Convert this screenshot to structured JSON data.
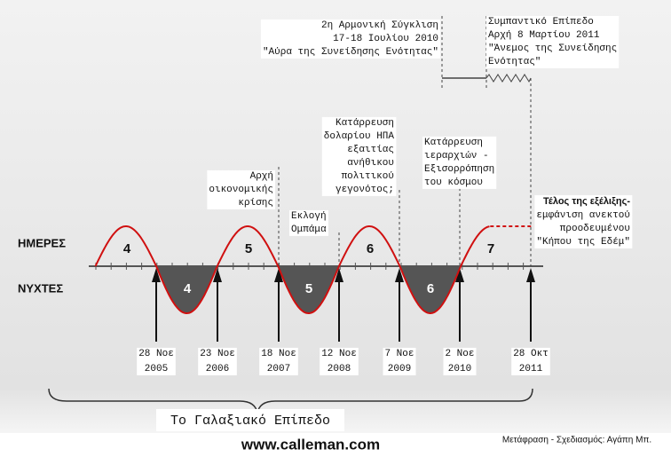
{
  "header_notes": [
    {
      "lines": [
        "2η Αρμονική Σύγκλιση",
        "17-18 Ιουλίου 2010",
        "\"Αύρα της Συνείδησης Ενότητας\""
      ]
    },
    {
      "lines": [
        "Συμπαντικό Επίπεδο",
        "Αρχή 8 Μαρτίου 2011",
        "\"Άνεμος της Συνείδησης",
        "Ενότητας\""
      ]
    }
  ],
  "row_labels": {
    "days": "ΗΜΕΡΕΣ",
    "nights": "ΝΥΧΤΕΣ"
  },
  "day_numbers": [
    4,
    5,
    6,
    7
  ],
  "night_numbers": [
    4,
    5,
    6
  ],
  "annotations": [
    {
      "lines": [
        "Αρχή",
        "οικονομικής",
        "κρίσης"
      ]
    },
    {
      "lines": [
        "Εκλογή",
        "Ομπάμα"
      ]
    },
    {
      "lines": [
        "Κατάρρευση",
        "δολαρίου ΗΠΑ",
        "εξαιτίας",
        "ανήθικου",
        "πολιτικού",
        "γεγονότος;"
      ]
    },
    {
      "lines": [
        "Κατάρρευση",
        "ιεραρχιών -",
        "Εξισορρόπηση",
        "του κόσμου"
      ]
    },
    {
      "lines": [
        "Τέλος της εξέλιξης-",
        "εμφάνιση ανεκτού",
        "προοδευμένου",
        "\"Κήπου της Εδέμ\""
      ]
    }
  ],
  "dates": [
    {
      "lines": [
        "28 Νοε",
        "2005"
      ]
    },
    {
      "lines": [
        "23 Νοε",
        "2006"
      ]
    },
    {
      "lines": [
        "18 Νοε",
        "2007"
      ]
    },
    {
      "lines": [
        "12 Νοε",
        "2008"
      ]
    },
    {
      "lines": [
        "7 Νοε",
        "2009"
      ]
    },
    {
      "lines": [
        "2 Νοε",
        "2010"
      ]
    },
    {
      "lines": [
        "28 Οκτ",
        "2011"
      ]
    }
  ],
  "galactic_label": "Το Γαλαξιακό Επίπεδο",
  "website": "www.calleman.com",
  "credit": "Μετάφραση - Σχεδιασμός: Αγάπη Μπ."
}
